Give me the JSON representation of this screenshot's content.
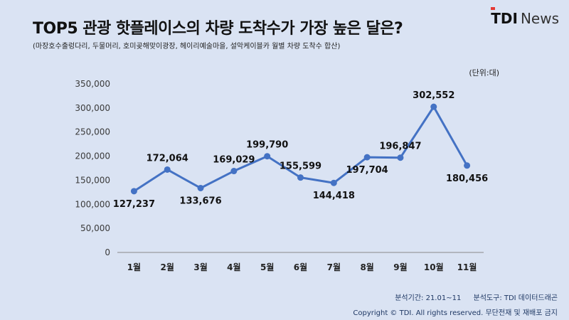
{
  "header": {
    "title": "TOP5 관광 핫플레이스의 차량 도착수가 가장 높은 달은?",
    "subtitle": "(마장호수출렁다리, 두물머리, 호미곶해맞이광장, 헤이리예술마을, 설악케이블카 월별 차량 도착수 합산)",
    "logo_brand": "TDI",
    "logo_text": "News"
  },
  "unit_label": "(단위:대)",
  "footer": {
    "period": "분석기간: 21.01~11",
    "tool": "분석도구: TDI 데이터드래곤",
    "copyright": "Copyright © TDI. All rights reserved. 무단전재 및 재배포 금지"
  },
  "colors": {
    "background": "#dae3f3",
    "line": "#4472c4",
    "axis": "#8a8a8a"
  },
  "chart_data": {
    "type": "line",
    "categories": [
      "1월",
      "2월",
      "3월",
      "4월",
      "5월",
      "6월",
      "7월",
      "8월",
      "9월",
      "10월",
      "11월"
    ],
    "series": [
      {
        "values": [
          127237,
          172064,
          133676,
          169029,
          199790,
          155599,
          144418,
          197704,
          196847,
          302552,
          180456
        ]
      }
    ],
    "data_labels": [
      "127,237",
      "172,064",
      "133,676",
      "169,029",
      "199,790",
      "155,599",
      "144,418",
      "197,704",
      "196,847",
      "302,552",
      "180,456"
    ],
    "label_positions": [
      "below",
      "above",
      "below",
      "above",
      "above",
      "above",
      "below",
      "below",
      "above",
      "above",
      "below"
    ],
    "y_ticks": [
      "0",
      "50,000",
      "100,000",
      "150,000",
      "200,000",
      "250,000",
      "300,000",
      "350,000"
    ],
    "ylim": [
      0,
      350000
    ],
    "grid": false,
    "legend": "none"
  }
}
